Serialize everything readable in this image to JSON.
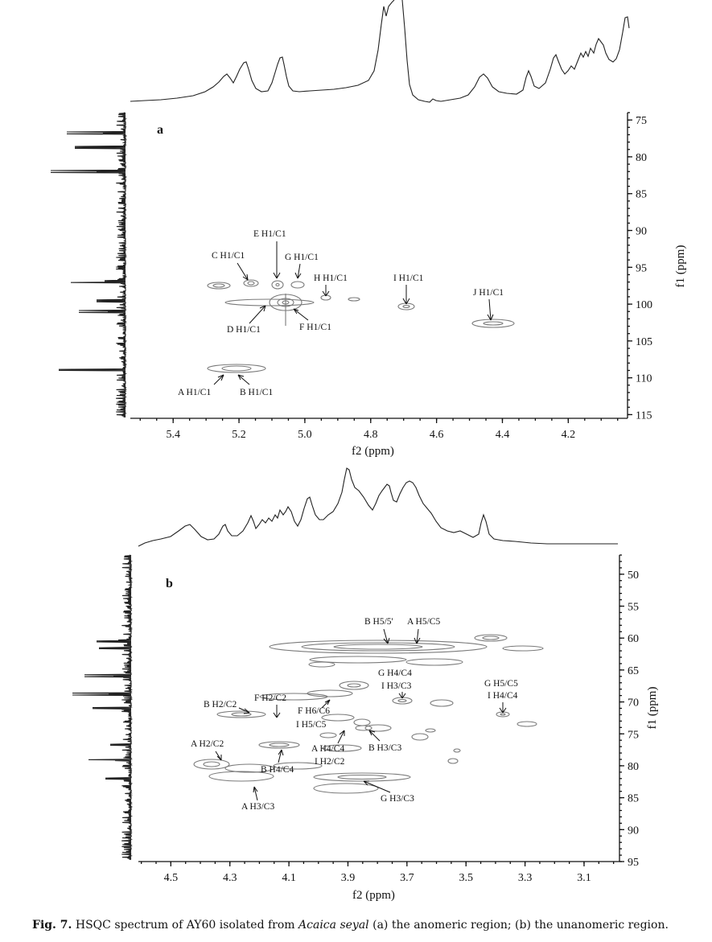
{
  "caption": {
    "fig_label": "Fig. 7.",
    "text_before": "HSQC spectrum of AY60 isolated from",
    "species": "Acaica seyal",
    "text_after": "(a) the anomeric region; (b) the unanomeric region."
  },
  "chart_data": [
    {
      "type": "scatter",
      "panel_label": "a",
      "xlabel": "f2 (ppm)",
      "ylabel": "f1 (ppm)",
      "x_ticks": [
        5.4,
        5.2,
        5.0,
        4.8,
        4.6,
        4.4,
        4.2
      ],
      "y_ticks": [
        75,
        80,
        85,
        90,
        95,
        100,
        105,
        110,
        115
      ],
      "xlim": [
        5.53,
        4.02
      ],
      "ylim": [
        74,
        115.5
      ],
      "peaks": [
        {
          "label": "A H1/C1",
          "x": 5.24,
          "y": 109.5
        },
        {
          "label": "B H1/C1",
          "x": 5.18,
          "y": 109.5
        },
        {
          "label": "C H1/C1",
          "x": 5.17,
          "y": 97.5
        },
        {
          "label": "D H1/C1",
          "x": 5.15,
          "y": 100.0
        },
        {
          "label": "E H1/C1",
          "x": 5.09,
          "y": 97.8
        },
        {
          "label": "F H1/C1",
          "x": 5.06,
          "y": 100.0
        },
        {
          "label": "G H1/C1",
          "x": 5.03,
          "y": 97.5
        },
        {
          "label": "H H1/C1",
          "x": 4.94,
          "y": 99.3
        },
        {
          "label": "I H1/C1",
          "x": 4.69,
          "y": 100.8
        },
        {
          "label": "J H1/C1",
          "x": 4.44,
          "y": 103.0
        }
      ]
    },
    {
      "type": "scatter",
      "panel_label": "b",
      "xlabel": "f2 (ppm)",
      "ylabel": "f1 (ppm)",
      "x_ticks": [
        4.5,
        4.3,
        4.1,
        3.9,
        3.7,
        3.5,
        3.3,
        3.1
      ],
      "y_ticks": [
        50,
        55,
        60,
        65,
        70,
        75,
        80,
        85,
        90,
        95
      ],
      "xlim": [
        4.61,
        2.98
      ],
      "ylim": [
        47,
        95
      ],
      "peaks": [
        {
          "label": "B H5/5'",
          "x": 3.76,
          "y": 61.5
        },
        {
          "label": "A H5/C5",
          "x": 3.67,
          "y": 61.5
        },
        {
          "label": "G H4/C4",
          "x": 3.7,
          "y": 70.0
        },
        {
          "label": "I H3/C3",
          "x": 3.7,
          "y": 70.0
        },
        {
          "label": "G H5/C5",
          "x": 3.36,
          "y": 72.0
        },
        {
          "label": "I H4/C4",
          "x": 3.36,
          "y": 72.0
        },
        {
          "label": "B H2/C2",
          "x": 4.18,
          "y": 72.2
        },
        {
          "label": "F H2/C2",
          "x": 4.13,
          "y": 72.3
        },
        {
          "label": "F H6/C6",
          "x": 3.97,
          "y": 69.5
        },
        {
          "label": "I H5/C5",
          "x": 3.94,
          "y": 74.0
        },
        {
          "label": "A H4/C4",
          "x": 3.94,
          "y": 74.0
        },
        {
          "label": "I H2/C2",
          "x": 3.94,
          "y": 74.0
        },
        {
          "label": "B H3/C3",
          "x": 3.83,
          "y": 73.5
        },
        {
          "label": "A H2/C2",
          "x": 4.28,
          "y": 80.0
        },
        {
          "label": "B H4/C4",
          "x": 4.12,
          "y": 76.8
        },
        {
          "label": "A H3/C3",
          "x": 4.19,
          "y": 81.8
        },
        {
          "label": "G H3/C3",
          "x": 3.84,
          "y": 82.5
        }
      ]
    }
  ]
}
